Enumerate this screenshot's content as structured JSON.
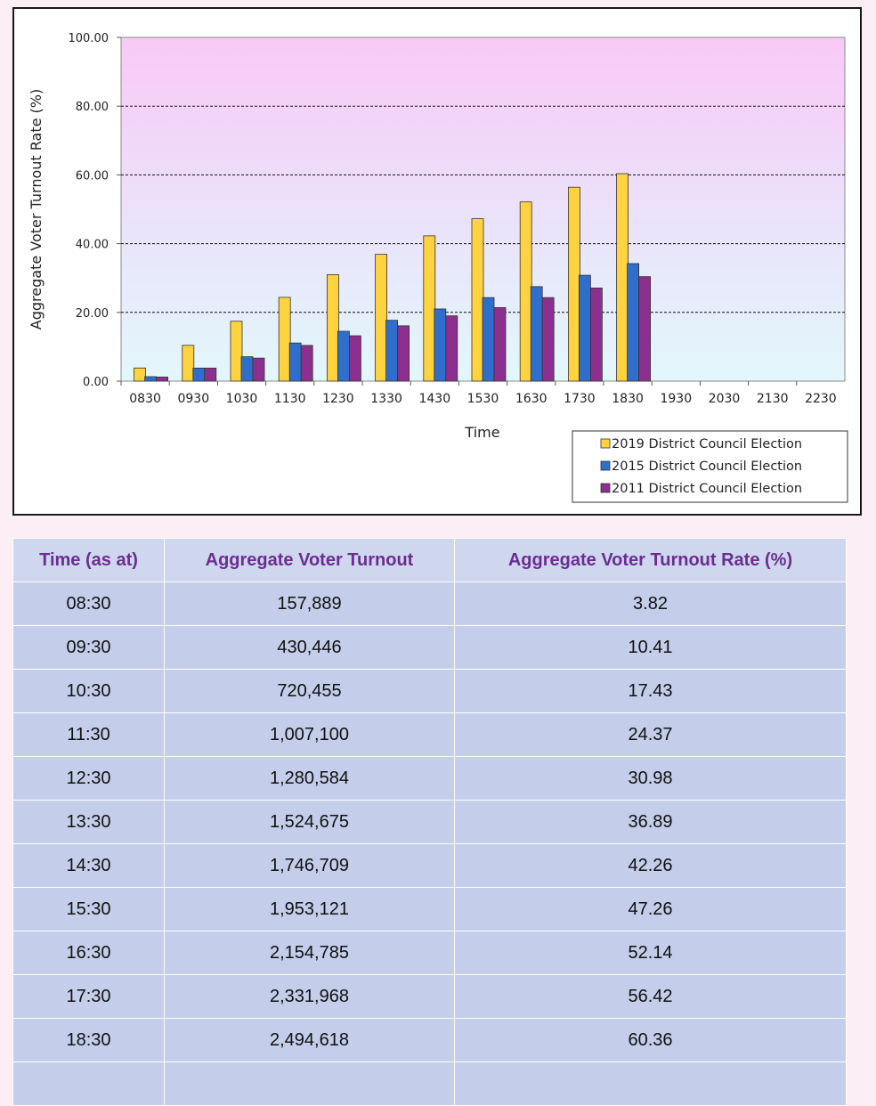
{
  "chart_data": {
    "type": "bar",
    "title": "",
    "xlabel": "Time",
    "ylabel": "Aggregate Voter Turnout Rate (%)",
    "ylim": [
      0,
      100
    ],
    "y_ticks": [
      "0.00",
      "20.00",
      "40.00",
      "60.00",
      "80.00",
      "100.00"
    ],
    "categories": [
      "0830",
      "0930",
      "1030",
      "1130",
      "1230",
      "1330",
      "1430",
      "1530",
      "1630",
      "1730",
      "1830",
      "1930",
      "2030",
      "2130",
      "2230"
    ],
    "grid": "horizontal dashed",
    "legend_position": "bottom-right",
    "series": [
      {
        "name": "2019 District Council Election",
        "color": "#ffd23f",
        "values": [
          3.82,
          10.41,
          17.43,
          24.37,
          30.98,
          36.89,
          42.26,
          47.26,
          52.14,
          56.42,
          60.36,
          null,
          null,
          null,
          null
        ]
      },
      {
        "name": "2015 District Council Election",
        "color": "#2f6fcb",
        "values": [
          1.3,
          3.8,
          7.1,
          11.1,
          14.5,
          17.7,
          21.0,
          24.3,
          27.5,
          30.8,
          34.2,
          null,
          null,
          null,
          null
        ]
      },
      {
        "name": "2011 District Council Election",
        "color": "#8d2f8f",
        "values": [
          1.2,
          3.8,
          6.7,
          10.4,
          13.2,
          16.1,
          19.0,
          21.4,
          24.3,
          27.1,
          30.4,
          null,
          null,
          null,
          null
        ]
      }
    ]
  },
  "table": {
    "headers": [
      "Time (as at)",
      "Aggregate Voter Turnout",
      "Aggregate Voter Turnout Rate (%)"
    ],
    "rows": [
      [
        "08:30",
        "157,889",
        "3.82"
      ],
      [
        "09:30",
        "430,446",
        "10.41"
      ],
      [
        "10:30",
        "720,455",
        "17.43"
      ],
      [
        "11:30",
        "1,007,100",
        "24.37"
      ],
      [
        "12:30",
        "1,280,584",
        "30.98"
      ],
      [
        "13:30",
        "1,524,675",
        "36.89"
      ],
      [
        "14:30",
        "1,746,709",
        "42.26"
      ],
      [
        "15:30",
        "1,953,121",
        "47.26"
      ],
      [
        "16:30",
        "2,154,785",
        "52.14"
      ],
      [
        "17:30",
        "2,331,968",
        "56.42"
      ],
      [
        "18:30",
        "2,494,618",
        "60.36"
      ]
    ]
  }
}
